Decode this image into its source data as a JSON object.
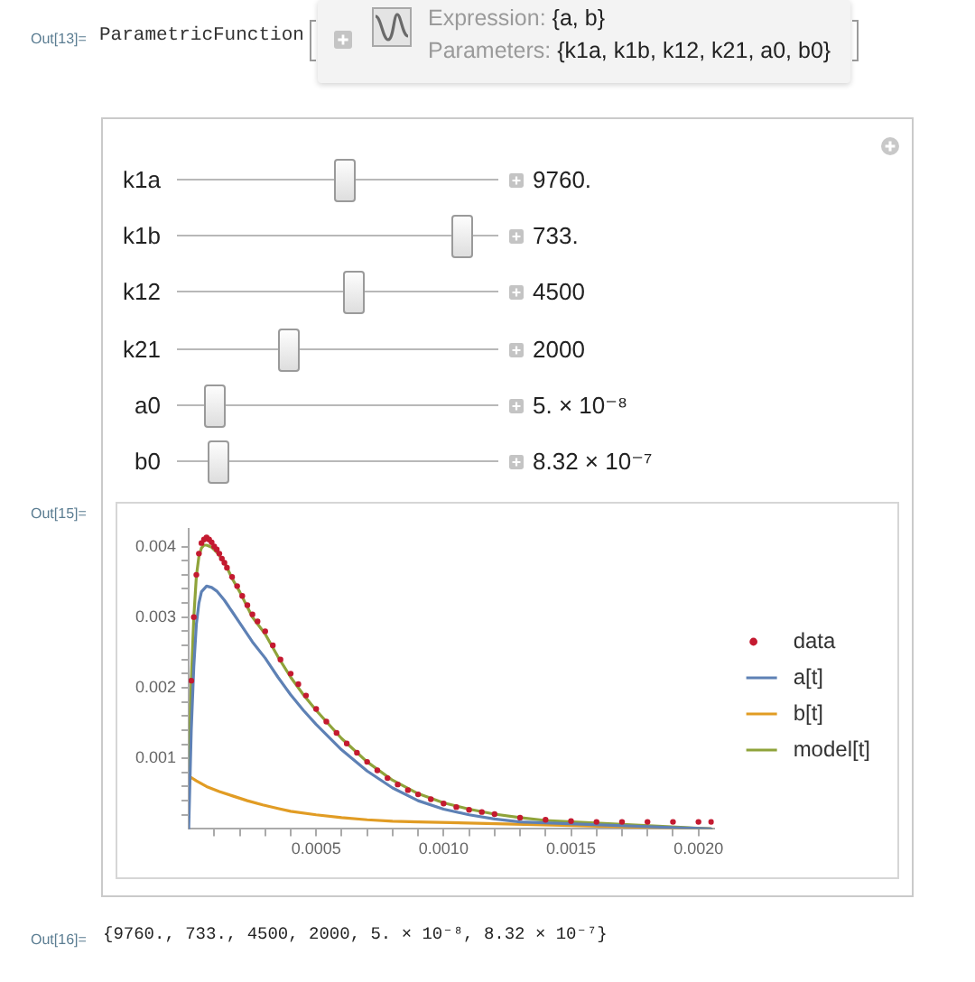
{
  "chart_data": {
    "type": "line",
    "series": [
      {
        "name": "data",
        "type": "scatter",
        "marker": "circle",
        "color": "#c41a30",
        "x": [
          1e-05,
          2e-05,
          3e-05,
          4e-05,
          5e-05,
          6e-05,
          7e-05,
          8e-05,
          9e-05,
          0.0001,
          0.00011,
          0.00012,
          0.00013,
          0.00014,
          0.00015,
          0.00017,
          0.00019,
          0.00021,
          0.00023,
          0.00025,
          0.00027,
          0.0003,
          0.00033,
          0.00036,
          0.0004,
          0.00043,
          0.00046,
          0.0005,
          0.00054,
          0.00058,
          0.00062,
          0.00066,
          0.0007,
          0.00074,
          0.00078,
          0.00082,
          0.00086,
          0.0009,
          0.00095,
          0.001,
          0.00105,
          0.0011,
          0.00115,
          0.0012,
          0.0013,
          0.0014,
          0.0015,
          0.0016,
          0.0017,
          0.0018,
          0.0019,
          0.002,
          0.00205
        ],
        "values": [
          0.0021,
          0.003,
          0.0036,
          0.0039,
          0.00405,
          0.0041,
          0.00413,
          0.0041,
          0.00406,
          0.004,
          0.00396,
          0.0039,
          0.00383,
          0.00377,
          0.0037,
          0.00357,
          0.00344,
          0.0033,
          0.00317,
          0.00304,
          0.00294,
          0.0028,
          0.0026,
          0.0024,
          0.0022,
          0.00205,
          0.00189,
          0.0017,
          0.00152,
          0.00136,
          0.00121,
          0.00108,
          0.00095,
          0.00083,
          0.00072,
          0.00063,
          0.00055,
          0.00049,
          0.00042,
          0.00036,
          0.00031,
          0.00027,
          0.00024,
          0.00021,
          0.00016,
          0.00013,
          0.00011,
          0.0001,
          0.0001,
          0.0001,
          0.0001,
          0.0001,
          0.0001
        ]
      },
      {
        "name": "a[t]",
        "type": "line",
        "color": "#5e81b5",
        "x": [
          0,
          1e-05,
          2e-05,
          3e-05,
          4e-05,
          5e-05,
          7e-05,
          9e-05,
          0.00011,
          0.00014,
          0.00017,
          0.0002,
          0.00025,
          0.0003,
          0.00035,
          0.0004,
          0.00045,
          0.0005,
          0.0006,
          0.0007,
          0.0008,
          0.0009,
          0.001,
          0.0011,
          0.0012,
          0.0013,
          0.00205
        ],
        "values": [
          0,
          0.0014,
          0.0023,
          0.0029,
          0.0032,
          0.00336,
          0.00344,
          0.00342,
          0.00337,
          0.00324,
          0.00308,
          0.00292,
          0.00265,
          0.00242,
          0.00215,
          0.0019,
          0.00168,
          0.00148,
          0.00112,
          0.00082,
          0.00058,
          0.0004,
          0.00028,
          0.0002,
          0.00014,
          0.0001,
          0
        ]
      },
      {
        "name": "b[t]",
        "type": "line",
        "color": "#e19c24",
        "x": [
          0,
          3e-05,
          7e-05,
          0.00012,
          0.00017,
          0.00023,
          0.00029,
          0.00035,
          0.0004,
          0.0005,
          0.0006,
          0.0007,
          0.0008,
          0.0009,
          0.00205
        ],
        "values": [
          0.00075,
          0.00068,
          0.0006,
          0.00053,
          0.00047,
          0.0004,
          0.00034,
          0.00029,
          0.00025,
          0.0002,
          0.00016,
          0.00013,
          0.00011,
          0.0001,
          0
        ]
      },
      {
        "name": "model[t]",
        "type": "line",
        "color": "#8fa33a",
        "x": [
          0,
          1e-05,
          2e-05,
          3e-05,
          4e-05,
          5e-05,
          6e-05,
          7e-05,
          9e-05,
          0.00011,
          0.00014,
          0.00017,
          0.0002,
          0.00025,
          0.0003,
          0.00035,
          0.0004,
          0.00045,
          0.0005,
          0.0006,
          0.0007,
          0.0008,
          0.0009,
          0.001,
          0.0011,
          0.0012,
          0.0013,
          0.0014,
          0.00205
        ],
        "values": [
          0.00075,
          0.0021,
          0.003,
          0.00358,
          0.00386,
          0.00398,
          0.00402,
          0.00402,
          0.00399,
          0.00392,
          0.00378,
          0.00355,
          0.00336,
          0.003,
          0.00276,
          0.00244,
          0.00215,
          0.0019,
          0.00168,
          0.00128,
          0.00095,
          0.00069,
          0.0005,
          0.00037,
          0.00028,
          0.00021,
          0.00016,
          0.00012,
          0
        ]
      }
    ],
    "xlim": [
      0,
      0.00206
    ],
    "ylim": [
      0,
      0.00425
    ],
    "xticks": [
      {
        "value": 0.0001,
        "label": null
      },
      {
        "value": 0.0002,
        "label": null
      },
      {
        "value": 0.0003,
        "label": null
      },
      {
        "value": 0.0004,
        "label": null
      },
      0.0005,
      {
        "value": 0.0006,
        "label": null
      },
      {
        "value": 0.0007,
        "label": null
      },
      {
        "value": 0.0008,
        "label": null
      },
      {
        "value": 0.0009,
        "label": null
      },
      {
        "value": 0.001,
        "label": "0.0010"
      },
      {
        "value": 0.0011,
        "label": null
      },
      {
        "value": 0.0012,
        "label": null
      },
      {
        "value": 0.0013,
        "label": null
      },
      {
        "value": 0.0014,
        "label": null
      },
      0.0015,
      {
        "value": 0.0016,
        "label": null
      },
      {
        "value": 0.0017,
        "label": null
      },
      {
        "value": 0.0018,
        "label": null
      },
      {
        "value": 0.0019,
        "label": null
      },
      {
        "value": 0.002,
        "label": "0.0020"
      }
    ],
    "yticks": [
      {
        "value": 0.0002,
        "label": null
      },
      {
        "value": 0.0004,
        "label": null
      },
      {
        "value": 0.0006,
        "label": null
      },
      {
        "value": 0.0008,
        "label": null
      },
      0.001,
      {
        "value": 0.0012,
        "label": null
      },
      {
        "value": 0.0014,
        "label": null
      },
      {
        "value": 0.0016,
        "label": null
      },
      {
        "value": 0.0018,
        "label": null
      },
      0.002,
      {
        "value": 0.0022,
        "label": null
      },
      {
        "value": 0.0024,
        "label": null
      },
      {
        "value": 0.0026,
        "label": null
      },
      {
        "value": 0.0028,
        "label": null
      },
      0.003,
      {
        "value": 0.0032,
        "label": null
      },
      {
        "value": 0.0034,
        "label": null
      },
      {
        "value": 0.0036,
        "label": null
      },
      {
        "value": 0.0038,
        "label": null
      },
      0.004
    ],
    "legend": "right",
    "annotations": [
      "Out[13]=",
      "ParametricFunction",
      "Expression:",
      "{a, b}",
      "Parameters:",
      "{k1a, k1b, k12, k21, a0, b0}",
      "k1a",
      "9760.",
      "k1b",
      "733.",
      "k12",
      "4500",
      "k21",
      "2000",
      "a0",
      "5. × 10⁻⁸",
      "b0",
      "8.32 × 10⁻⁷",
      "Out[15]=",
      "Out[16]=",
      "{9760., 733., 4500, 2000, 5. × 10⁻⁸, 8.32 × 10⁻⁷}"
    ]
  }
}
